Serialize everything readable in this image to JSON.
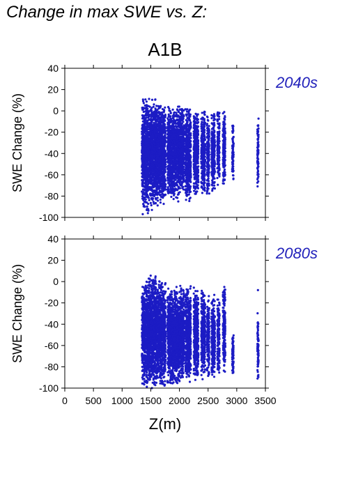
{
  "page": {
    "title": "Change in max SWE vs. Z:"
  },
  "chart_data": {
    "type": "scatter",
    "scenario": "A1B",
    "xlabel": "Z(m)",
    "ylabel": "SWE Change (%)",
    "xlim": [
      0,
      3500
    ],
    "ylim": [
      -100,
      40
    ],
    "xticks": [
      0,
      500,
      1000,
      1500,
      2000,
      2500,
      3000,
      3500
    ],
    "yticks": [
      -100,
      -80,
      -60,
      -40,
      -20,
      0,
      20,
      40
    ],
    "marker_color": "#1c1cc4",
    "panels": [
      {
        "label": "2040s",
        "clusters": [
          {
            "x": [
              1345,
              1400
            ],
            "ymin": -95,
            "ymax": 12
          },
          {
            "x": [
              1400,
              1500
            ],
            "ymin": -94,
            "ymax": 13
          },
          {
            "x": [
              1500,
              1600
            ],
            "ymin": -92,
            "ymax": 12
          },
          {
            "x": [
              1600,
              1700
            ],
            "ymin": -90,
            "ymax": 10
          },
          {
            "x": [
              1700,
              1760
            ],
            "ymin": -88,
            "ymax": 8
          },
          {
            "x": [
              1790,
              1900
            ],
            "ymin": -85,
            "ymax": 5
          },
          {
            "x": [
              1900,
              2000
            ],
            "ymin": -82,
            "ymax": 5
          },
          {
            "x": [
              2000,
              2080
            ],
            "ymin": -80,
            "ymax": 8
          },
          {
            "x": [
              2100,
              2200
            ],
            "ymin": -86,
            "ymax": 5
          },
          {
            "x": [
              2250,
              2330
            ],
            "ymin": -82,
            "ymax": 2
          },
          {
            "x": [
              2380,
              2450
            ],
            "ymin": -80,
            "ymax": 3
          },
          {
            "x": [
              2480,
              2520
            ],
            "ymin": -82,
            "ymax": 4
          },
          {
            "x": [
              2560,
              2620
            ],
            "ymin": -78,
            "ymax": 2
          },
          {
            "x": [
              2660,
              2700
            ],
            "ymin": -75,
            "ymax": 2
          },
          {
            "x": [
              2760,
              2800
            ],
            "ymin": -72,
            "ymax": 3
          },
          {
            "x": [
              2920,
              2945
            ],
            "ymin": -70,
            "ymax": -8
          },
          {
            "x": [
              3360,
              3380
            ],
            "ymin": -76,
            "ymax": -2
          }
        ],
        "outliers": [
          {
            "x": 1360,
            "y": -97
          },
          {
            "x": 1450,
            "y": -96
          },
          {
            "x": 1520,
            "y": -93
          },
          {
            "x": 1980,
            "y": -85
          },
          {
            "x": 2760,
            "y": -68
          }
        ]
      },
      {
        "label": "2080s",
        "clusters": [
          {
            "x": [
              1345,
              1400
            ],
            "ymin": -100,
            "ymax": 2
          },
          {
            "x": [
              1400,
              1500
            ],
            "ymin": -100,
            "ymax": 7
          },
          {
            "x": [
              1500,
              1600
            ],
            "ymin": -100,
            "ymax": 6
          },
          {
            "x": [
              1600,
              1700
            ],
            "ymin": -99,
            "ymax": 2
          },
          {
            "x": [
              1700,
              1760
            ],
            "ymin": -98,
            "ymax": 0
          },
          {
            "x": [
              1790,
              1900
            ],
            "ymin": -97,
            "ymax": -2
          },
          {
            "x": [
              1900,
              2000
            ],
            "ymin": -97,
            "ymax": -5
          },
          {
            "x": [
              2000,
              2080
            ],
            "ymin": -96,
            "ymax": -2
          },
          {
            "x": [
              2100,
              2200
            ],
            "ymin": -96,
            "ymax": -3
          },
          {
            "x": [
              2250,
              2330
            ],
            "ymin": -94,
            "ymax": -5
          },
          {
            "x": [
              2380,
              2450
            ],
            "ymin": -92,
            "ymax": -6
          },
          {
            "x": [
              2480,
              2520
            ],
            "ymin": -92,
            "ymax": -8
          },
          {
            "x": [
              2560,
              2620
            ],
            "ymin": -92,
            "ymax": -12
          },
          {
            "x": [
              2660,
              2700
            ],
            "ymin": -90,
            "ymax": -15
          },
          {
            "x": [
              2760,
              2800
            ],
            "ymin": -88,
            "ymax": 0
          },
          {
            "x": [
              2920,
              2945
            ],
            "ymin": -92,
            "ymax": -45
          },
          {
            "x": [
              3360,
              3380
            ],
            "ymin": -95,
            "ymax": -28
          }
        ],
        "outliers": [
          {
            "x": 3370,
            "y": -8
          },
          {
            "x": 2780,
            "y": -20
          },
          {
            "x": 1520,
            "y": -100
          }
        ]
      }
    ]
  }
}
